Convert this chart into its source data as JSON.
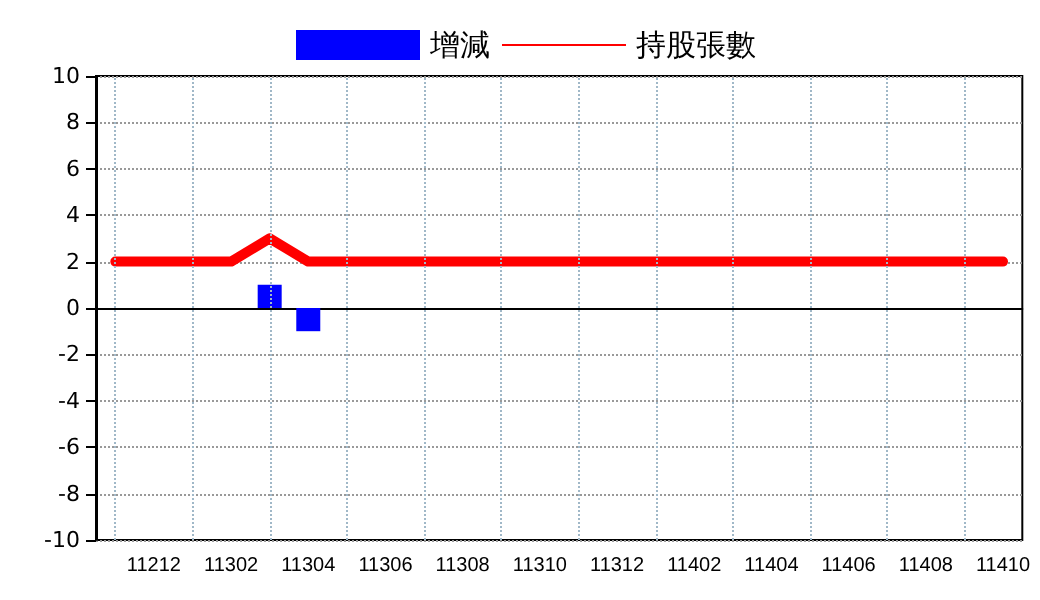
{
  "chart_data": {
    "type": "bar",
    "categories": [
      null,
      "11212",
      null,
      "11302",
      null,
      "11304",
      null,
      "11306",
      null,
      "11308",
      null,
      "11310",
      null,
      "11312",
      null,
      "11402",
      null,
      "11404",
      null,
      "11406",
      null,
      "11408",
      null,
      "11410"
    ],
    "series": [
      {
        "name": "增減",
        "color": "#0000ff",
        "values": [
          null,
          null,
          null,
          null,
          1,
          -1,
          null,
          null,
          null,
          null,
          null,
          null,
          null,
          null,
          null,
          null,
          null,
          null,
          null,
          null,
          null,
          null,
          null,
          null
        ]
      },
      {
        "name": "持股張數",
        "type": "line",
        "color": "#ff0000",
        "values": [
          2,
          2,
          2,
          2,
          3,
          2,
          2,
          2,
          2,
          2,
          2,
          2,
          2,
          2,
          2,
          2,
          2,
          2,
          2,
          2,
          2,
          2,
          2,
          2
        ]
      }
    ],
    "ylim": [
      -10,
      10
    ],
    "yticks": [
      -10,
      -8,
      -6,
      -4,
      -2,
      0,
      2,
      4,
      6,
      8,
      10
    ],
    "grid": true,
    "legend": "top",
    "marker": "none"
  }
}
